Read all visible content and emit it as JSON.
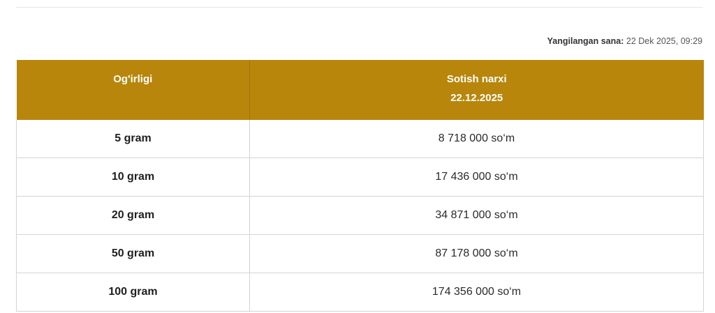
{
  "updated": {
    "label": "Yangilangan sana:",
    "value": "22 Dek 2025, 09:29"
  },
  "table": {
    "headers": {
      "weight": "Og'irligi",
      "price_title": "Sotish narxi",
      "price_date": "22.12.2025"
    },
    "rows": [
      {
        "weight": "5 gram",
        "price": "8 718 000 so‘m"
      },
      {
        "weight": "10 gram",
        "price": "17 436 000 so‘m"
      },
      {
        "weight": "20 gram",
        "price": "34 871 000 so‘m"
      },
      {
        "weight": "50 gram",
        "price": "87 178 000 so‘m"
      },
      {
        "weight": "100 gram",
        "price": "174 356 000 so‘m"
      }
    ]
  },
  "colors": {
    "header_bg": "#b8860b",
    "header_text": "#ffffff",
    "border": "#d4d4d4"
  }
}
